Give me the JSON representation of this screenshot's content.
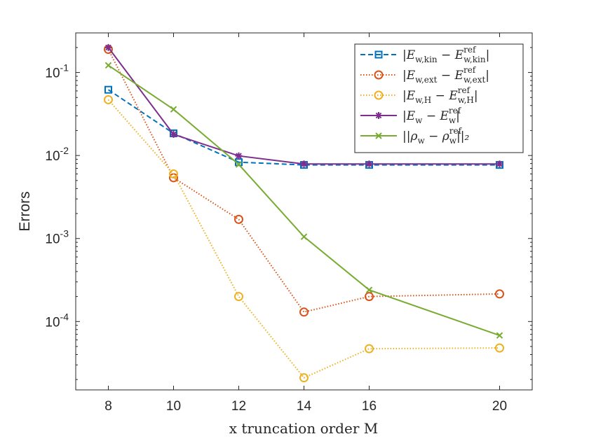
{
  "chart_data": {
    "type": "line",
    "title": "",
    "xlabel": "x truncation order M",
    "ylabel": "Errors",
    "yscale": "log",
    "ylim": [
      1.5e-05,
      0.3
    ],
    "xlim": [
      7,
      21
    ],
    "x": [
      8,
      10,
      12,
      14,
      16,
      20
    ],
    "xticks": [
      8,
      10,
      12,
      14,
      16,
      20
    ],
    "xtick_labels": [
      "8",
      "10",
      "12",
      "14",
      "16",
      "20"
    ],
    "ytick_values": [
      0.0001,
      0.001,
      0.01,
      0.1
    ],
    "ytick_labels": [
      {
        "base": "10",
        "exp": "-4"
      },
      {
        "base": "10",
        "exp": "-3"
      },
      {
        "base": "10",
        "exp": "-2"
      },
      {
        "base": "10",
        "exp": "-1"
      }
    ],
    "legend_position": "top-right",
    "series": [
      {
        "name": "|E_w,kin − E^ref_w,kin|",
        "legend": {
          "main": "|E",
          "sub": "w,kin",
          "mid": " − E",
          "sup": "ref",
          "sub2": "w,kin",
          "end": "|"
        },
        "color": "#0072BD",
        "dash": "dashed",
        "marker": "square",
        "values": [
          0.062,
          0.0185,
          0.0083,
          0.0077,
          0.0077,
          0.0077
        ]
      },
      {
        "name": "|E_w,ext − E^ref_w,ext|",
        "legend": {
          "main": "|E",
          "sub": "w,ext",
          "mid": " − E",
          "sup": "ref",
          "sub2": "w,ext",
          "end": "|"
        },
        "color": "#D95319",
        "dash": "dotted",
        "marker": "circle",
        "values": [
          0.19,
          0.0054,
          0.0017,
          0.00013,
          0.0002,
          0.000215
        ]
      },
      {
        "name": "|E_w,H − E^ref_w,H|",
        "legend": {
          "main": "|E",
          "sub": "w,H",
          "mid": " − E",
          "sup": "ref",
          "sub2": "w,H",
          "end": "|"
        },
        "color": "#EDB120",
        "dash": "dotted",
        "marker": "circle",
        "values": [
          0.047,
          0.006,
          0.0002,
          2.1e-05,
          4.7e-05,
          4.8e-05
        ]
      },
      {
        "name": "|E_w − E^ref_w|",
        "legend": {
          "main": "|E",
          "sub": "w",
          "mid": " − E",
          "sup": "ref",
          "sub2": "w",
          "end": "|"
        },
        "color": "#7E2F8E",
        "dash": "solid",
        "marker": "asterisk",
        "values": [
          0.2,
          0.018,
          0.0099,
          0.0079,
          0.0079,
          0.0079
        ]
      },
      {
        "name": "||ρ_w − ρ^ref_w||_2",
        "legend": {
          "main": "||ρ",
          "sub": "w",
          "mid": " − ρ",
          "sup": "ref",
          "sub2": "w",
          "end": "||₂"
        },
        "color": "#77AC30",
        "dash": "solid",
        "marker": "x",
        "values": [
          0.122,
          0.036,
          0.0078,
          0.00105,
          0.00024,
          6.8e-05
        ]
      }
    ]
  }
}
